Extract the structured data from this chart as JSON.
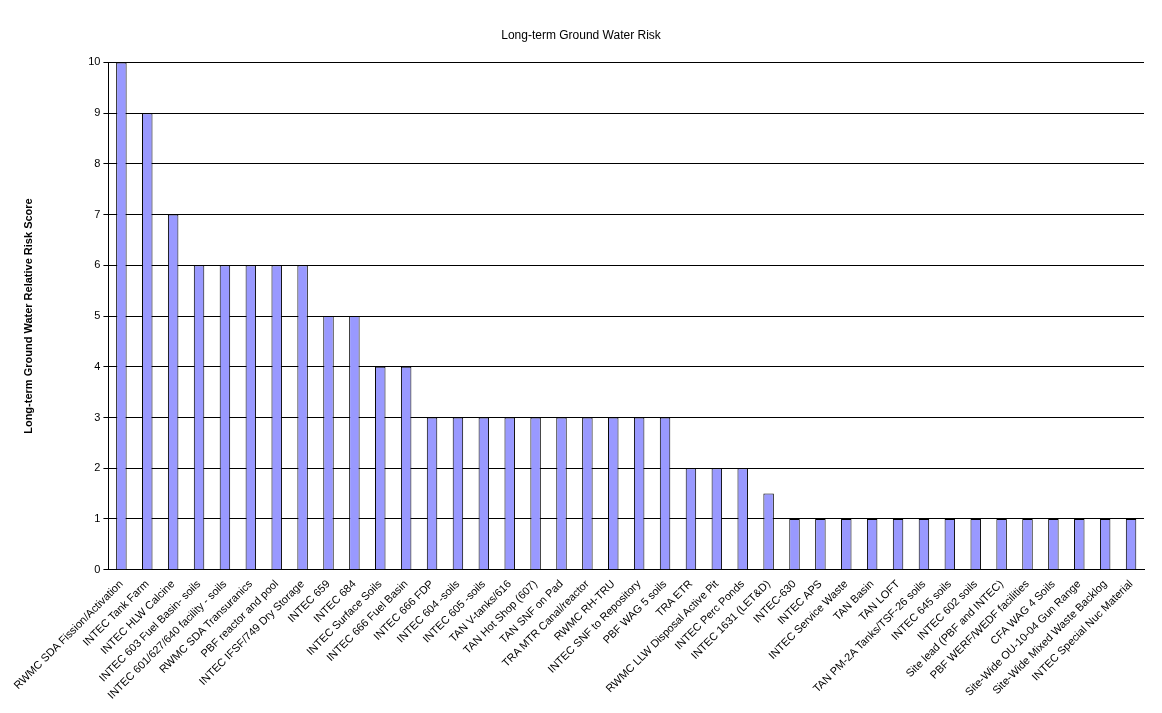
{
  "chart_data": {
    "type": "bar",
    "title": "Long-term Ground Water Risk",
    "ylabel": "Long-term Ground Water Relative Risk Score",
    "categories": [
      "RWMC SDA Fission/Activation",
      "INTEC Tank Farm",
      "INTEC HLW Calcine",
      "INTEC 603 Fuel Basin- soils",
      "INTEC 601/627/640 facility - soils",
      "RWMC SDA Transuranics",
      "PBF reactor and pool",
      "INTEC IFSF/749 Dry Storage",
      "INTEC 659",
      "INTEC 684",
      "INTEC Surface Soils",
      "INTEC 666 Fuel Basin",
      "INTEC 666 FDP",
      "INTEC 604 -soils",
      "INTEC 605 -soils",
      "TAN V-tanks/616",
      "TAN Hot Shop (607)",
      "TAN SNF on Pad",
      "TRA MTR Canal/reactor",
      "RWMC RH-TRU",
      "INTEC SNF to Repository",
      "PBF WAG 5 soils",
      "TRA ETR",
      "RWMC LLW Disposal Active Pit",
      "INTEC Perc Ponds",
      "INTEC 1631 (LET&D)",
      "INTEC-630",
      "INTEC APS",
      "INTEC Service Waste",
      "TAN Basin",
      "TAN LOFT",
      "TAN PM-2A Tanks/TSF-26 soils",
      "INTEC 645 soils",
      "INTEC 602 soils",
      "Site lead (PBF and INTEC)",
      "PBF WERF/WEDF facilities",
      "CFA WAG 4 Soils",
      "Site-Wide OU-10-04 Gun Range",
      "Site-Wide Mixed Waste Backlog",
      "INTEC Special Nuc Material"
    ],
    "values": [
      10,
      9,
      7,
      6,
      6,
      6,
      6,
      6,
      5,
      5,
      4,
      4,
      3,
      3,
      3,
      3,
      3,
      3,
      3,
      3,
      3,
      3,
      2,
      2,
      2,
      1.5,
      1,
      1,
      1,
      1,
      1,
      1,
      1,
      1,
      1,
      1,
      1,
      1,
      1,
      1
    ],
    "color": "#9999ff",
    "ylim": [
      0,
      10
    ],
    "yticks": [
      0,
      1,
      2,
      3,
      4,
      5,
      6,
      7,
      8,
      9,
      10
    ],
    "grid": "y",
    "legend": false
  }
}
